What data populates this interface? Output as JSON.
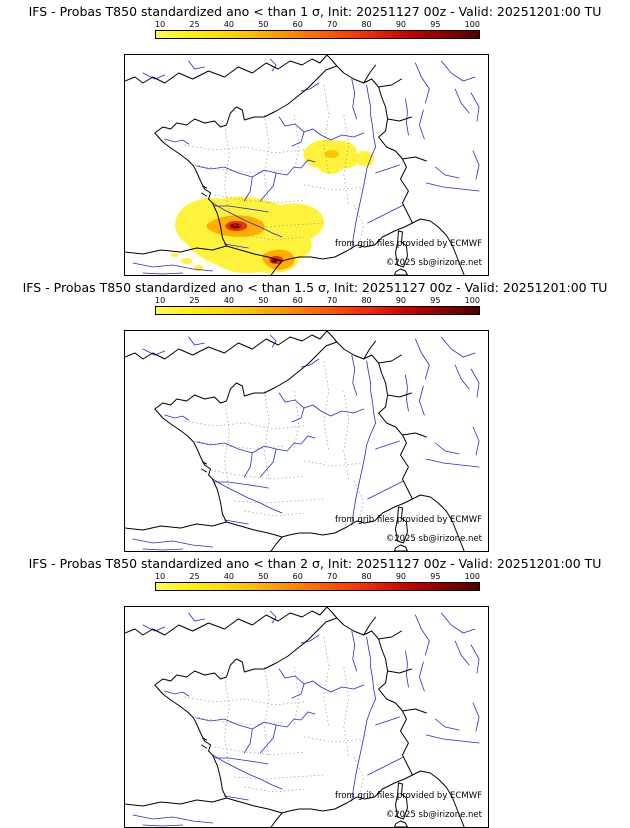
{
  "page": {
    "background": "#ffffff"
  },
  "colorbar": {
    "ticks": [
      "10",
      "25",
      "40",
      "50",
      "60",
      "70",
      "80",
      "90",
      "95",
      "100"
    ],
    "colors": [
      "#FFFF54",
      "#FFF200",
      "#FFD800",
      "#FFAE00",
      "#FF8000",
      "#FF5000",
      "#F02800",
      "#C80000",
      "#8C0000",
      "#500000"
    ],
    "unit": "%"
  },
  "panels": [
    {
      "title": "IFS - Probas T850  standardized ano < than 1 σ, Init: 20251127 00z - Valid: 20251201:00 TU",
      "threshold_sigma": "1",
      "attribution_line1": "from grib files provided by ECMWF",
      "attribution_line2": "©2025 sb@irizone.net",
      "has_shading": true
    },
    {
      "title": "IFS - Probas T850  standardized ano < than 1.5 σ, Init: 20251127 00z - Valid: 20251201:00 TU",
      "threshold_sigma": "1.5",
      "attribution_line1": "from grib files provided by ECMWF",
      "attribution_line2": "©2025 sb@irizone.net",
      "has_shading": false
    },
    {
      "title": "IFS - Probas T850  standardized ano < than 2 σ, Init: 20251127 00z - Valid: 20251201:00 TU",
      "threshold_sigma": "2",
      "attribution_line1": "from grib files provided by ECMWF",
      "attribution_line2": "©2025 sb@irizone.net",
      "has_shading": false
    }
  ],
  "map_description": {
    "region": "France with surrounding coasts (southern England, Benelux, Germany, Switzerland, Italy, Spain, Corsica)",
    "features": [
      "black coastlines and country borders",
      "gray dotted department boundaries",
      "blue rivers"
    ],
    "shaded_regions_panel1": [
      {
        "area": "Massif Central / south-central France",
        "probability": "10-40",
        "color": "yellow"
      },
      {
        "area": "Aveyron-Tarn core",
        "probability": "70-95",
        "color": "dark red"
      },
      {
        "area": "Rhone-Alpes / western Alps patches",
        "probability": "10-25",
        "color": "yellow"
      },
      {
        "area": "eastern Pyrenees / Catalonia",
        "probability": "40-95",
        "color": "orange to dark red"
      }
    ]
  }
}
